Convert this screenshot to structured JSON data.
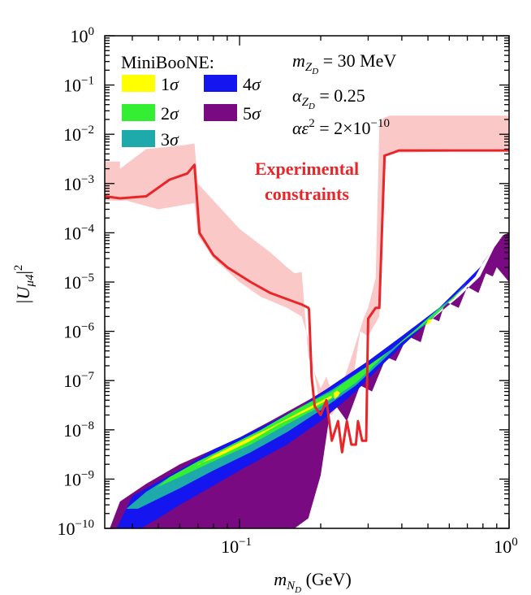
{
  "chart_data": {
    "type": "contour",
    "x_scale": "log",
    "y_scale": "log",
    "xlim": [
      0.0316,
      1.0
    ],
    "ylim": [
      1e-10,
      1.0
    ],
    "x_ticks": [
      {
        "value": 0.1,
        "base": "10",
        "exp": "−1"
      },
      {
        "value": 1.0,
        "base": "10",
        "exp": "0"
      }
    ],
    "y_ticks": [
      {
        "value": 1e-10,
        "base": "10",
        "exp": "−10"
      },
      {
        "value": 1e-09,
        "base": "10",
        "exp": "−9"
      },
      {
        "value": 1e-08,
        "base": "10",
        "exp": "−8"
      },
      {
        "value": 1e-07,
        "base": "10",
        "exp": "−7"
      },
      {
        "value": 1e-06,
        "base": "10",
        "exp": "−6"
      },
      {
        "value": 1e-05,
        "base": "10",
        "exp": "−5"
      },
      {
        "value": 0.0001,
        "base": "10",
        "exp": "−4"
      },
      {
        "value": 0.001,
        "base": "10",
        "exp": "−3"
      },
      {
        "value": 0.01,
        "base": "10",
        "exp": "−2"
      },
      {
        "value": 0.1,
        "base": "10",
        "exp": "−1"
      },
      {
        "value": 1.0,
        "base": "10",
        "exp": "0"
      }
    ],
    "xlabel": {
      "main": "m",
      "sub": "N",
      "subsub": "D",
      "unit": " (GeV)"
    },
    "ylabel": {
      "text": "|U",
      "sub": "μ4",
      "close": "|",
      "sup": "2"
    },
    "legend": {
      "title": "MiniBooNE:",
      "entries": [
        {
          "label": "1σ",
          "color": "#ffff00"
        },
        {
          "label": "4σ",
          "color": "#1515f0"
        },
        {
          "label": "2σ",
          "color": "#33ee33"
        },
        {
          "label": "5σ",
          "color": "#7a0a82"
        },
        {
          "label": "3σ",
          "color": "#1eaaaa"
        }
      ]
    },
    "parameters": [
      {
        "lhs": "m",
        "sub": "Z",
        "subsub": "D",
        "rhs": " = 30 MeV"
      },
      {
        "lhs": "α",
        "sub": "Z",
        "subsub": "D",
        "rhs": " = 0.25"
      },
      {
        "lhs": "αε",
        "sup": "2",
        "rhs": " = 2×10",
        "rhs_sup": "−10"
      }
    ],
    "annotation": {
      "line1": "Experimental",
      "line2": "constraints",
      "color": "#e8262a"
    },
    "colors": {
      "sigma1": "#ffff00",
      "sigma2": "#33ee33",
      "sigma3": "#1eaaaa",
      "sigma4": "#1515f0",
      "sigma5": "#7a0a82",
      "constraint_line": "#e8262a",
      "constraint_band": "#fbc8c8"
    },
    "regions": {
      "sigma5": {
        "upper": [
          [
            0.033,
            1e-10
          ],
          [
            0.036,
            3.5e-10
          ],
          [
            0.045,
            8e-10
          ],
          [
            0.06,
            2e-09
          ],
          [
            0.08,
            4e-09
          ],
          [
            0.1,
            7e-09
          ],
          [
            0.13,
            1.5e-08
          ],
          [
            0.18,
            4e-08
          ],
          [
            0.25,
            1.2e-07
          ],
          [
            0.35,
            4e-07
          ],
          [
            0.5,
            1.5e-06
          ],
          [
            0.65,
            5e-06
          ],
          [
            0.78,
            1.3e-05
          ],
          [
            0.88,
            5e-05
          ],
          [
            0.95,
            9e-05
          ],
          [
            1.0,
            0.0001
          ]
        ],
        "lower": [
          [
            1.0,
            1e-05
          ],
          [
            0.9,
            2e-05
          ],
          [
            0.87,
            1.3e-05
          ],
          [
            0.82,
            1.5e-05
          ],
          [
            0.77,
            6e-06
          ],
          [
            0.7,
            8e-06
          ],
          [
            0.65,
            3e-06
          ],
          [
            0.58,
            4e-06
          ],
          [
            0.55,
            1.6e-06
          ],
          [
            0.5,
            2e-06
          ],
          [
            0.47,
            6e-07
          ],
          [
            0.42,
            8e-07
          ],
          [
            0.38,
            2.5e-07
          ],
          [
            0.35,
            3e-07
          ],
          [
            0.31,
            6e-08
          ],
          [
            0.28,
            8e-08
          ],
          [
            0.25,
            1.5e-08
          ],
          [
            0.22,
            4e-08
          ],
          [
            0.2,
            1.2e-09
          ],
          [
            0.18,
            1.6e-10
          ],
          [
            0.16,
            1e-10
          ]
        ]
      },
      "sigma4": {
        "upper": [
          [
            0.035,
            1e-10
          ],
          [
            0.04,
            4.5e-10
          ],
          [
            0.05,
            9e-10
          ],
          [
            0.065,
            2e-09
          ],
          [
            0.08,
            4e-09
          ],
          [
            0.1,
            7e-09
          ],
          [
            0.13,
            1.4e-08
          ],
          [
            0.17,
            3e-08
          ],
          [
            0.22,
            8e-08
          ],
          [
            0.3,
            2.5e-07
          ],
          [
            0.4,
            8e-07
          ],
          [
            0.55,
            3e-06
          ],
          [
            0.7,
            1.1e-05
          ],
          [
            0.78,
            2e-05
          ],
          [
            0.85,
            4e-05
          ]
        ],
        "lower": [
          [
            0.85,
            4e-05
          ],
          [
            0.8,
            2.5e-05
          ],
          [
            0.75,
            1.3e-05
          ],
          [
            0.65,
            6e-06
          ],
          [
            0.55,
            2.5e-06
          ],
          [
            0.45,
            9e-07
          ],
          [
            0.35,
            2.5e-07
          ],
          [
            0.27,
            6e-08
          ],
          [
            0.2,
            1.5e-08
          ],
          [
            0.15,
            5e-09
          ],
          [
            0.1,
            1.5e-09
          ],
          [
            0.075,
            6e-10
          ],
          [
            0.06,
            3e-10
          ],
          [
            0.05,
            1.6e-10
          ],
          [
            0.043,
            1e-10
          ],
          [
            0.038,
            1e-10
          ]
        ]
      },
      "sigma3": {
        "upper": [
          [
            0.038,
            2.5e-10
          ],
          [
            0.045,
            5.5e-10
          ],
          [
            0.055,
            1.1e-09
          ],
          [
            0.07,
            2.2e-09
          ],
          [
            0.09,
            4.5e-09
          ],
          [
            0.12,
            1e-08
          ],
          [
            0.16,
            2.5e-08
          ],
          [
            0.22,
            6.5e-08
          ],
          [
            0.3,
            2e-07
          ],
          [
            0.4,
            6e-07
          ],
          [
            0.5,
            1.5e-06
          ],
          [
            0.6,
            4e-06
          ],
          [
            0.7,
            1e-05
          ]
        ],
        "lower": [
          [
            0.7,
            1e-05
          ],
          [
            0.65,
            6e-06
          ],
          [
            0.55,
            3e-06
          ],
          [
            0.45,
            1.1e-06
          ],
          [
            0.35,
            3e-07
          ],
          [
            0.27,
            8e-08
          ],
          [
            0.2,
            2.5e-08
          ],
          [
            0.15,
            9e-09
          ],
          [
            0.11,
            3.5e-09
          ],
          [
            0.08,
            1.5e-09
          ],
          [
            0.06,
            6.5e-10
          ],
          [
            0.05,
            4e-10
          ],
          [
            0.042,
            2.5e-10
          ]
        ]
      },
      "sigma2": {
        "upper": [
          [
            0.048,
            6e-10
          ],
          [
            0.055,
            1.1e-09
          ],
          [
            0.07,
            2.3e-09
          ],
          [
            0.09,
            4.5e-09
          ],
          [
            0.12,
            1e-08
          ],
          [
            0.16,
            2.5e-08
          ],
          [
            0.22,
            6e-08
          ],
          [
            0.3,
            2e-07
          ],
          [
            0.4,
            6e-07
          ],
          [
            0.55,
            2.5e-06
          ],
          [
            0.62,
            5e-06
          ],
          [
            0.68,
            8e-06
          ]
        ],
        "lower": [
          [
            0.68,
            8e-06
          ],
          [
            0.62,
            4.5e-06
          ],
          [
            0.55,
            2.8e-06
          ],
          [
            0.45,
            1.1e-06
          ],
          [
            0.35,
            3.5e-07
          ],
          [
            0.27,
            9e-08
          ],
          [
            0.2,
            3e-08
          ],
          [
            0.15,
            1.3e-08
          ],
          [
            0.11,
            5e-09
          ],
          [
            0.08,
            2.3e-09
          ],
          [
            0.06,
            1.1e-09
          ],
          [
            0.05,
            7e-10
          ]
        ]
      },
      "sigma1": {
        "upper": [
          [
            0.07,
            1.9e-09
          ],
          [
            0.08,
            3e-09
          ],
          [
            0.1,
            5.5e-09
          ],
          [
            0.13,
            1.1e-08
          ],
          [
            0.17,
            2.4e-08
          ],
          [
            0.22,
            5e-08
          ]
        ],
        "lower": [
          [
            0.22,
            4.5e-08
          ],
          [
            0.18,
            2.5e-08
          ],
          [
            0.14,
            1.3e-08
          ],
          [
            0.11,
            6e-09
          ],
          [
            0.085,
            3e-09
          ],
          [
            0.07,
            2e-09
          ]
        ]
      },
      "sigma1_islands": [
        [
          [
            0.225,
            4.2e-08
          ],
          [
            0.232,
            4.8e-08
          ],
          [
            0.236,
            5.6e-08
          ],
          [
            0.23,
            6.3e-08
          ],
          [
            0.223,
            5.5e-08
          ]
        ],
        [
          [
            0.49,
            1.3e-06
          ],
          [
            0.51,
            1.5e-06
          ],
          [
            0.52,
            1.8e-06
          ],
          [
            0.5,
            1.7e-06
          ]
        ]
      ]
    },
    "constraint_band": {
      "upper": [
        [
          0.0316,
          0.0028
        ],
        [
          0.036,
          0.0028
        ],
        [
          0.036,
          0.002
        ],
        [
          0.045,
          0.005
        ],
        [
          0.062,
          0.006
        ],
        [
          0.068,
          0.0065
        ],
        [
          0.07,
          0.001
        ],
        [
          0.1,
          0.00012
        ],
        [
          0.13,
          4e-05
        ],
        [
          0.15,
          2e-05
        ],
        [
          0.16,
          1.5e-05
        ],
        [
          0.17,
          1.6e-05
        ],
        [
          0.18,
          3e-07
        ],
        [
          0.2,
          7e-08
        ],
        [
          0.21,
          1.2e-07
        ],
        [
          0.22,
          6e-08
        ],
        [
          0.24,
          8e-08
        ],
        [
          0.26,
          3e-07
        ],
        [
          0.29,
          2e-06
        ],
        [
          0.3,
          3e-06
        ],
        [
          0.32,
          1.2e-05
        ],
        [
          0.33,
          0.014
        ],
        [
          0.34,
          0.021
        ],
        [
          0.36,
          0.024
        ],
        [
          1.0,
          0.024
        ]
      ],
      "lower": [
        [
          1.0,
          0.0047
        ],
        [
          0.35,
          0.0042
        ],
        [
          0.33,
          2e-06
        ],
        [
          0.3,
          8e-07
        ],
        [
          0.28,
          1e-06
        ],
        [
          0.26,
          6e-08
        ],
        [
          0.24,
          4e-08
        ],
        [
          0.22,
          2e-08
        ],
        [
          0.2,
          2.5e-08
        ],
        [
          0.18,
          7e-07
        ],
        [
          0.17,
          2e-06
        ],
        [
          0.15,
          3e-06
        ],
        [
          0.12,
          5e-06
        ],
        [
          0.1,
          1e-05
        ],
        [
          0.08,
          3e-05
        ],
        [
          0.07,
          9e-05
        ],
        [
          0.068,
          0.0004
        ],
        [
          0.05,
          0.0003
        ],
        [
          0.038,
          0.00045
        ],
        [
          0.0316,
          0.00045
        ]
      ]
    },
    "constraint_line": [
      [
        0.0316,
        0.00055
      ],
      [
        0.036,
        0.0005
      ],
      [
        0.045,
        0.00055
      ],
      [
        0.055,
        0.0012
      ],
      [
        0.064,
        0.0016
      ],
      [
        0.068,
        0.0024
      ],
      [
        0.071,
        0.0001
      ],
      [
        0.08,
        3.5e-05
      ],
      [
        0.09,
        2e-05
      ],
      [
        0.11,
        1e-05
      ],
      [
        0.13,
        6e-06
      ],
      [
        0.15,
        4.5e-06
      ],
      [
        0.17,
        3.5e-06
      ],
      [
        0.18,
        3e-06
      ],
      [
        0.181,
        2.8e-06
      ],
      [
        0.185,
        1.2e-07
      ],
      [
        0.19,
        3e-08
      ],
      [
        0.2,
        2e-08
      ],
      [
        0.21,
        4e-08
      ],
      [
        0.22,
        6e-09
      ],
      [
        0.232,
        1.5e-08
      ],
      [
        0.24,
        3.5e-09
      ],
      [
        0.25,
        1.5e-08
      ],
      [
        0.26,
        5e-09
      ],
      [
        0.27,
        5e-09
      ],
      [
        0.275,
        1.5e-08
      ],
      [
        0.285,
        6e-09
      ],
      [
        0.295,
        6e-09
      ],
      [
        0.3,
        1.8e-06
      ],
      [
        0.32,
        3e-06
      ],
      [
        0.33,
        3e-06
      ],
      [
        0.345,
        0.0037
      ],
      [
        0.37,
        0.0042
      ],
      [
        0.39,
        0.0047
      ],
      [
        1.0,
        0.0047
      ]
    ]
  }
}
